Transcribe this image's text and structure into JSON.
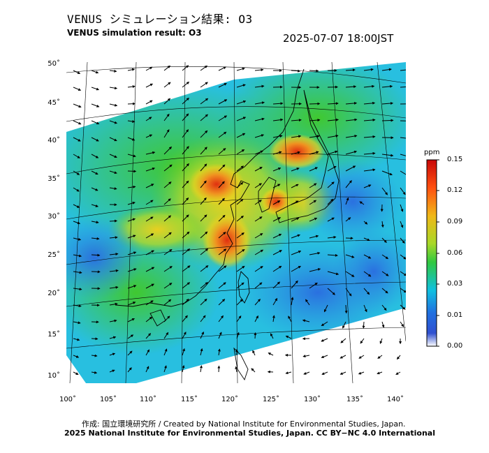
{
  "header": {
    "title_jp": "VENUS シミュレーション結果: O3",
    "title_en": "VENUS simulation result: O3",
    "timestamp": "2025-07-07 18:00JST"
  },
  "map": {
    "lat_labels": [
      "50˚",
      "45˚",
      "40˚",
      "35˚",
      "30˚",
      "25˚",
      "20˚",
      "15˚",
      "10˚"
    ],
    "lon_labels": [
      "100˚",
      "105˚",
      "110˚",
      "115˚",
      "120˚",
      "125˚",
      "130˚",
      "135˚",
      "140˚"
    ],
    "region": "East Asia",
    "variable": "O3"
  },
  "colorbar": {
    "unit": "ppm",
    "labels": [
      "0.15",
      "0.12",
      "0.09",
      "0.06",
      "0.03",
      "0.01",
      "0.00"
    ],
    "colors": [
      "#d01010",
      "#ff6a10",
      "#e8d020",
      "#40cc30",
      "#10c8d8",
      "#2060e0",
      "#ffffff"
    ]
  },
  "credits": {
    "line1": "作成: 国立環境研究所 / Created by National Institute for Environmental Studies, Japan.",
    "line2": "2025 National Institute for Environmental Studies, Japan. CC BY−NC 4.0 International"
  }
}
